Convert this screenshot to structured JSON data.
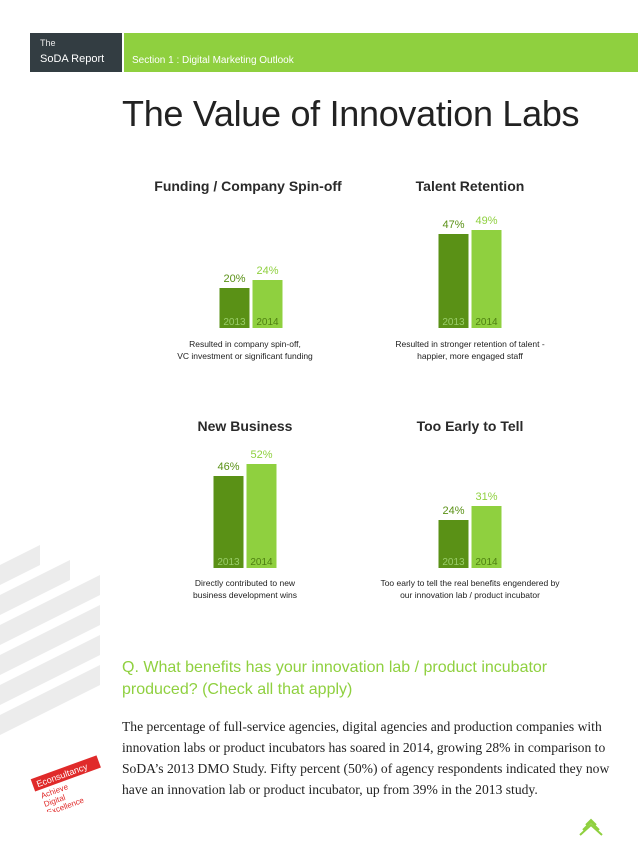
{
  "header": {
    "the_label": "The",
    "report_name": "SoDA Report",
    "section_label": "Section 1 : Digital Marketing Outlook"
  },
  "page_title": "The Value of Innovation Labs",
  "colors": {
    "green_dark": "#5a9116",
    "green_light": "#8fd03f",
    "header_dark": "#333d42",
    "badge_red": "#e02a2a"
  },
  "chart_data": [
    {
      "type": "bar",
      "title": "Funding / Company Spin-off",
      "categories": [
        "2013",
        "2014"
      ],
      "values": [
        20,
        24
      ],
      "value_labels": [
        "20%",
        "24%"
      ],
      "caption": [
        "Resulted in company spin-off,",
        "VC investment or significant funding"
      ]
    },
    {
      "type": "bar",
      "title": "Talent Retention",
      "categories": [
        "2013",
        "2014"
      ],
      "values": [
        47,
        49
      ],
      "value_labels": [
        "47%",
        "49%"
      ],
      "caption": [
        "Resulted in stronger retention of talent -",
        "happier, more engaged staff"
      ]
    },
    {
      "type": "bar",
      "title": "New Business",
      "categories": [
        "2013",
        "2014"
      ],
      "values": [
        46,
        52
      ],
      "value_labels": [
        "46%",
        "52%"
      ],
      "caption": [
        "Directly contributed to new",
        "business development wins"
      ]
    },
    {
      "type": "bar",
      "title": "Too Early to Tell",
      "categories": [
        "2013",
        "2014"
      ],
      "values": [
        24,
        31
      ],
      "value_labels": [
        "24%",
        "31%"
      ],
      "caption": [
        "Too early to tell the real benefits engendered by",
        "our innovation lab / product incubator"
      ]
    }
  ],
  "question": "Q. What benefits has your innovation lab / product incubator produced? (Check all that apply)",
  "body": "The percentage of full-service agencies, digital agencies and production companies with innovation labs or product incubators has soared in 2014, growing 28% in comparison to SoDA’s 2013 DMO Study.  Fifty percent (50%) of agency respondents indicated they now have an innovation lab or product incubator, up from 39% in the 2013 study.",
  "badge": {
    "brand": "Econsultancy",
    "line1": "Achieve",
    "line2": "Digital",
    "line3": "Excellence"
  }
}
